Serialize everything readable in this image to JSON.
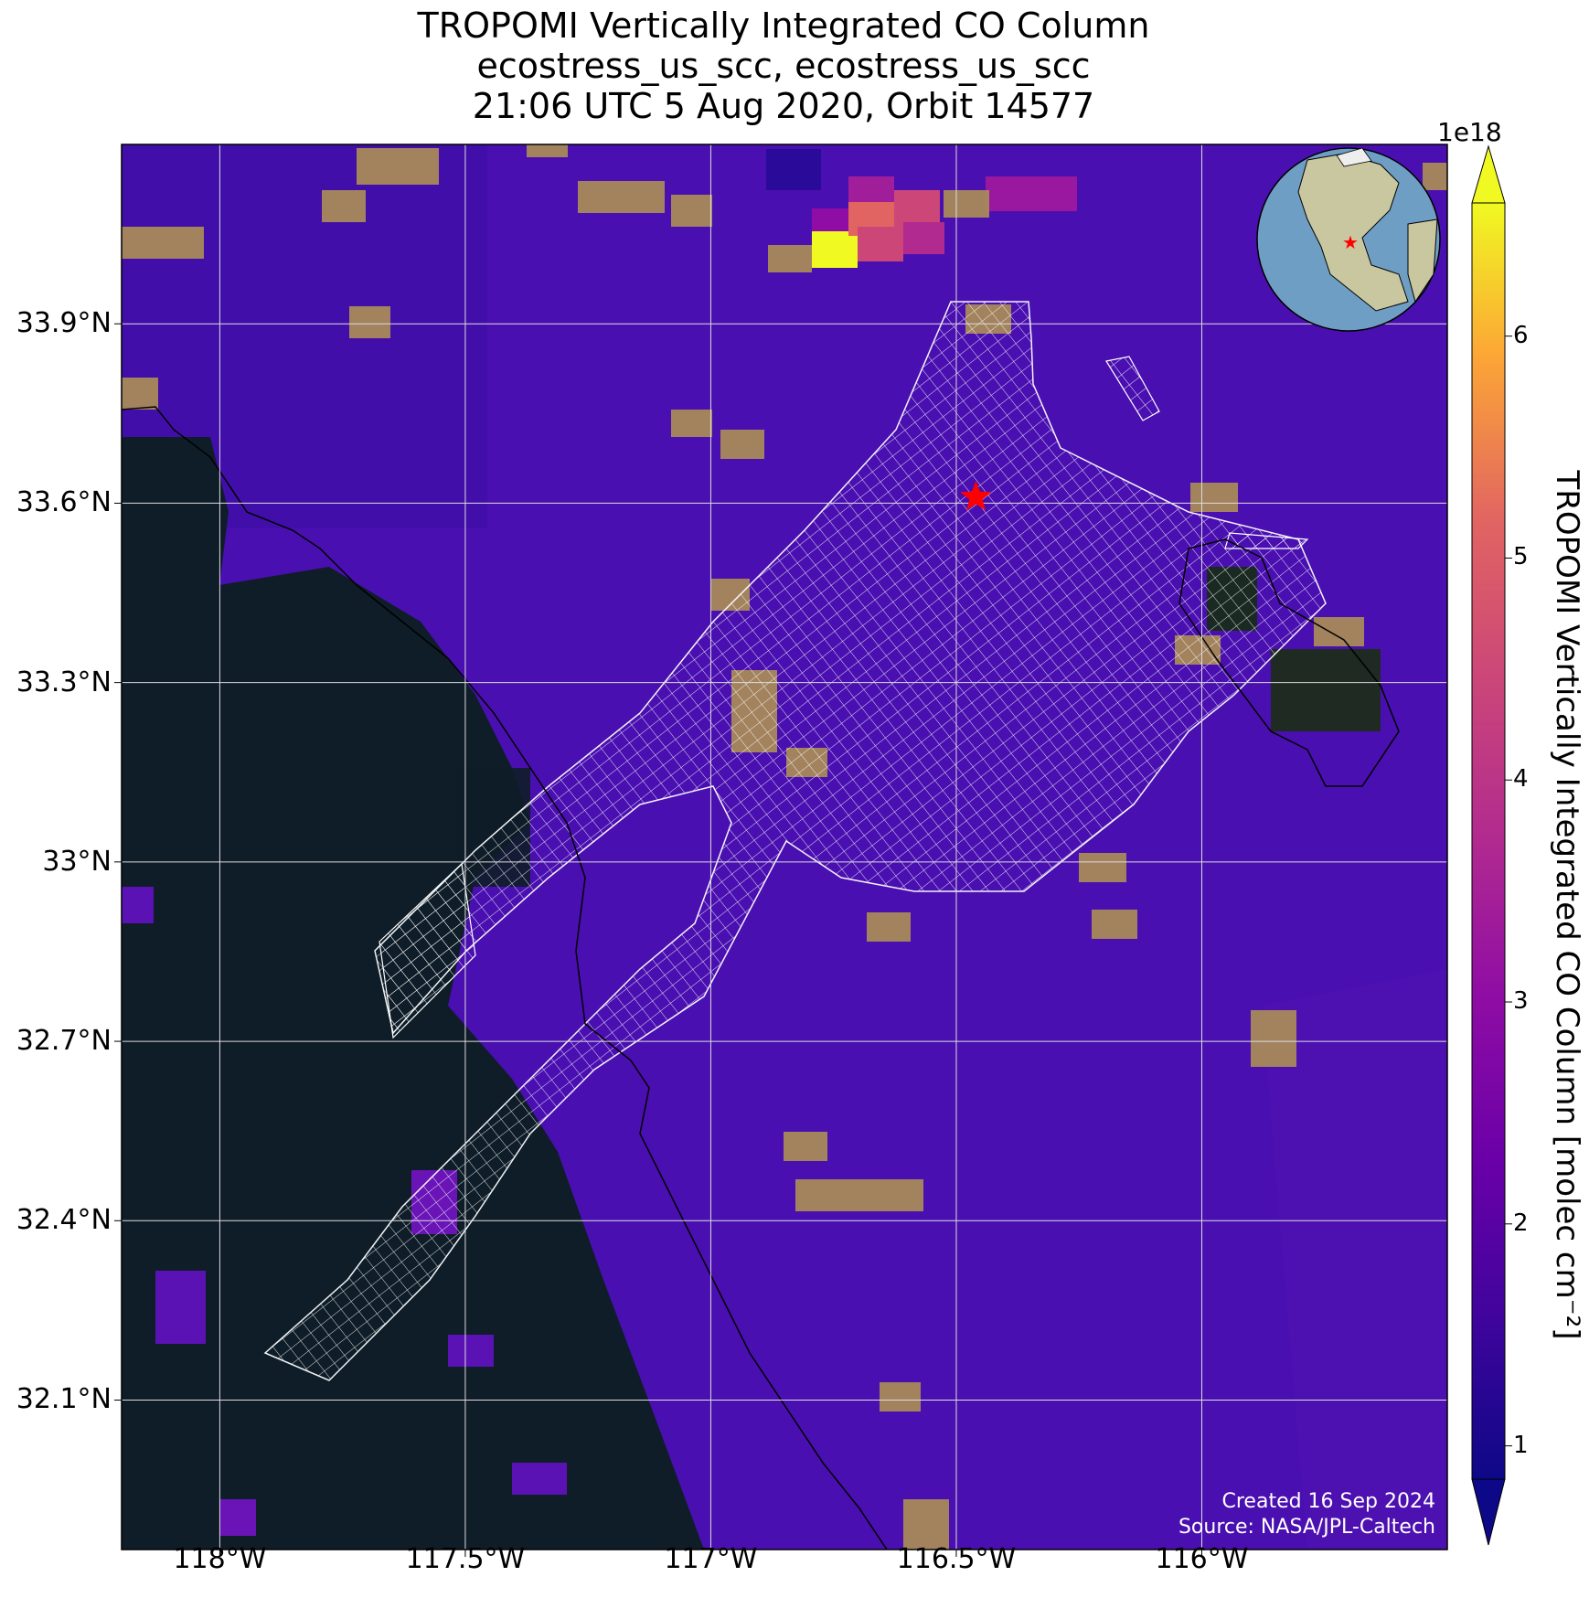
{
  "title_lines": [
    "TROPOMI Vertically Integrated CO Column",
    "ecostress_us_scc, ecostress_us_scc",
    "21:06 UTC 5 Aug 2020, Orbit 14577"
  ],
  "axes": {
    "lat_ticks": [
      "33.9°N",
      "33.6°N",
      "33.3°N",
      "33°N",
      "32.7°N",
      "32.4°N",
      "32.1°N"
    ],
    "lon_ticks": [
      "118°W",
      "117.5°W",
      "117°W",
      "116.5°W",
      "116°W"
    ],
    "lat_values": [
      33.9,
      33.6,
      33.3,
      33.0,
      32.7,
      32.4,
      32.1
    ],
    "lon_values": [
      -118.0,
      -117.5,
      -117.0,
      -116.5,
      -116.0
    ],
    "lat_range": [
      31.85,
      34.2
    ],
    "lon_range": [
      -118.2,
      -115.5
    ],
    "grid": true
  },
  "colorbar": {
    "label": "TROPOMI Vertically Integrated CO Column [molec cm⁻²]",
    "exponent": "1e18",
    "ticks": [
      "1",
      "2",
      "3",
      "4",
      "5",
      "6"
    ],
    "tick_values": [
      1,
      2,
      3,
      4,
      5,
      6
    ],
    "range": [
      0.85,
      6.6
    ],
    "colormap": "plasma"
  },
  "marker": {
    "lat": 33.61,
    "lon": -116.46,
    "color": "#ff0000",
    "icon": "star-icon"
  },
  "credits": [
    "Created 16 Sep 2024",
    "Source: NASA/JPL-Caltech"
  ],
  "colors": {
    "ocean": "#0e1d28",
    "background_co": "#4a0fb0",
    "high_co": "#f0f921",
    "grid": "#dddddd"
  }
}
